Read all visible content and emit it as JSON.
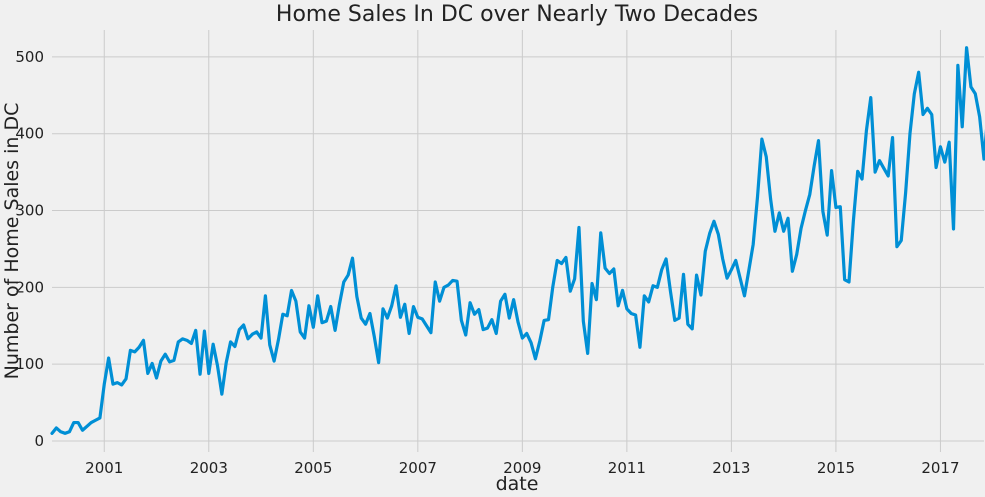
{
  "chart_data": {
    "type": "line",
    "title": "Home Sales In DC over Nearly Two Decades",
    "xlabel": "date",
    "ylabel": "Number of Home Sales in DC",
    "xlim": [
      "2000-01",
      "2017-11"
    ],
    "ylim": [
      0,
      535
    ],
    "grid": true,
    "x_ticks": [
      "2001",
      "2003",
      "2005",
      "2007",
      "2009",
      "2011",
      "2013",
      "2015",
      "2017"
    ],
    "y_ticks": [
      "0",
      "100",
      "200",
      "300",
      "400",
      "500"
    ],
    "colors": {
      "line": "#008fd5",
      "background": "#f0f0f0",
      "grid": "#cbcbcb"
    },
    "series": [
      {
        "start": "2000-01",
        "frequency": "monthly",
        "values": [
          10,
          17,
          12,
          10,
          12,
          24,
          24,
          14,
          19,
          24,
          27,
          30,
          74,
          108,
          74,
          76,
          73,
          81,
          118,
          116,
          122,
          131,
          88,
          101,
          82,
          104,
          113,
          103,
          105,
          129,
          133,
          131,
          127,
          144,
          87,
          143,
          88,
          126,
          98,
          61,
          102,
          129,
          123,
          145,
          151,
          133,
          139,
          142,
          134,
          189,
          125,
          104,
          132,
          165,
          163,
          196,
          182,
          142,
          134,
          176,
          148,
          189,
          154,
          156,
          175,
          144,
          178,
          207,
          216,
          238,
          188,
          160,
          152,
          166,
          136,
          102,
          172,
          160,
          176,
          202,
          161,
          178,
          140,
          175,
          161,
          159,
          150,
          141,
          207,
          182,
          200,
          203,
          209,
          208,
          157,
          138,
          180,
          165,
          171,
          145,
          147,
          158,
          140,
          182,
          191,
          160,
          184,
          155,
          134,
          140,
          128,
          107,
          130,
          157,
          158,
          201,
          235,
          231,
          239,
          195,
          211,
          278,
          156,
          114,
          205,
          184,
          271,
          225,
          218,
          224,
          176,
          196,
          172,
          166,
          164,
          122,
          189,
          181,
          202,
          200,
          223,
          237,
          195,
          157,
          160,
          217,
          152,
          146,
          216,
          190,
          247,
          270,
          286,
          269,
          237,
          212,
          223,
          235,
          212,
          189,
          222,
          256,
          318,
          393,
          370,
          315,
          273,
          297,
          273,
          290,
          221,
          243,
          277,
          300,
          321,
          358,
          391,
          299,
          268,
          352,
          304,
          305,
          210,
          207,
          286,
          351,
          341,
          404,
          447,
          350,
          365,
          355,
          345,
          395,
          253,
          261,
          323,
          400,
          452,
          480,
          425,
          433,
          425,
          356,
          383,
          363,
          389,
          276,
          489,
          409,
          512,
          461,
          452,
          422,
          367,
          433,
          406
        ]
      }
    ]
  }
}
